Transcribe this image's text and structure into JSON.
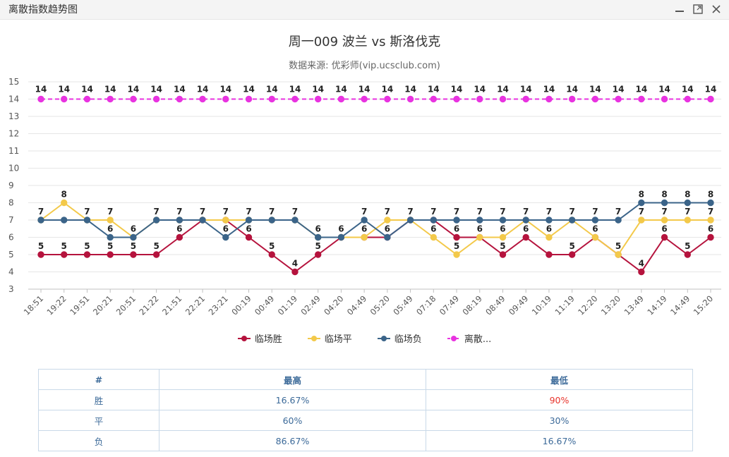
{
  "window": {
    "title": "离散指数趋势图"
  },
  "chart_data": {
    "type": "line",
    "title": "周一009 波兰 vs 斯洛伐克",
    "subtitle": "数据来源: 优彩师(vip.ucsclub.com)",
    "ylim": [
      3,
      15
    ],
    "yticks": [
      3,
      4,
      5,
      6,
      7,
      8,
      9,
      10,
      11,
      12,
      13,
      14,
      15
    ],
    "grid": true,
    "legend_position": "bottom-center",
    "categories": [
      "18:51",
      "19:22",
      "19:51",
      "20:21",
      "20:51",
      "21:22",
      "21:51",
      "22:21",
      "23:21",
      "00:19",
      "00:49",
      "01:19",
      "02:49",
      "04:20",
      "04:49",
      "05:20",
      "05:49",
      "07:18",
      "07:49",
      "08:19",
      "08:49",
      "09:49",
      "10:19",
      "11:19",
      "12:20",
      "13:20",
      "13:49",
      "14:19",
      "14:49",
      "15:20"
    ],
    "series": [
      {
        "name": "临场胜",
        "color": "#b5133d",
        "dashed": false,
        "labels": "below",
        "values": [
          5,
          5,
          5,
          5,
          5,
          5,
          6,
          7,
          7,
          6,
          5,
          4,
          5,
          6,
          6,
          6,
          7,
          7,
          6,
          6,
          5,
          6,
          5,
          5,
          6,
          5,
          4,
          6,
          5,
          6
        ]
      },
      {
        "name": "临场平",
        "color": "#f3c94a",
        "dashed": false,
        "labels": "above",
        "values": [
          7,
          8,
          7,
          7,
          6,
          7,
          7,
          7,
          7,
          7,
          7,
          7,
          6,
          6,
          6,
          7,
          7,
          6,
          5,
          6,
          6,
          7,
          6,
          7,
          6,
          5,
          7,
          7,
          7,
          7
        ]
      },
      {
        "name": "临场负",
        "color": "#3b6489",
        "dashed": false,
        "labels": "above",
        "values": [
          7,
          7,
          7,
          6,
          6,
          7,
          7,
          7,
          6,
          7,
          7,
          7,
          6,
          6,
          7,
          6,
          7,
          7,
          7,
          7,
          7,
          7,
          7,
          7,
          7,
          7,
          8,
          8,
          8,
          8
        ]
      },
      {
        "name": "离散指数",
        "legend_label": "离散...",
        "color": "#e833e0",
        "dashed": true,
        "labels": "above",
        "values": [
          14,
          14,
          14,
          14,
          14,
          14,
          14,
          14,
          14,
          14,
          14,
          14,
          14,
          14,
          14,
          14,
          14,
          14,
          14,
          14,
          14,
          14,
          14,
          14,
          14,
          14,
          14,
          14,
          14,
          14
        ]
      }
    ],
    "point_labels": [
      {
        "i": 0,
        "v": 5
      },
      {
        "i": 1,
        "v": 5
      },
      {
        "i": 2,
        "v": 5
      },
      {
        "i": 3,
        "v": 5
      },
      {
        "i": 4,
        "v": 5
      },
      {
        "i": 5,
        "v": 5
      },
      {
        "i": 6,
        "v": 6
      },
      {
        "i": 9,
        "v": 6
      },
      {
        "i": 10,
        "v": 5
      },
      {
        "i": 11,
        "v": 4
      },
      {
        "i": 12,
        "v": 5
      },
      {
        "i": 18,
        "v": 6
      },
      {
        "i": 19,
        "v": 6
      },
      {
        "i": 20,
        "v": 5
      },
      {
        "i": 21,
        "v": 6
      },
      {
        "i": 23,
        "v": 5
      },
      {
        "i": 24,
        "v": 6
      },
      {
        "i": 26,
        "v": 4
      },
      {
        "i": 27,
        "v": 6
      },
      {
        "i": 28,
        "v": 5
      },
      {
        "i": 29,
        "v": 6
      },
      {
        "i": 0,
        "v": 7
      },
      {
        "i": 1,
        "v": 8
      },
      {
        "i": 2,
        "v": 7
      },
      {
        "i": 3,
        "v": 7
      },
      {
        "i": 3,
        "v": 6
      },
      {
        "i": 4,
        "v": 6
      },
      {
        "i": 5,
        "v": 7
      },
      {
        "i": 6,
        "v": 7
      },
      {
        "i": 7,
        "v": 7
      },
      {
        "i": 8,
        "v": 7
      },
      {
        "i": 8,
        "v": 6
      },
      {
        "i": 9,
        "v": 7
      },
      {
        "i": 10,
        "v": 7
      },
      {
        "i": 11,
        "v": 7
      },
      {
        "i": 12,
        "v": 6
      },
      {
        "i": 13,
        "v": 6
      },
      {
        "i": 14,
        "v": 7
      },
      {
        "i": 14,
        "v": 6
      },
      {
        "i": 15,
        "v": 7
      },
      {
        "i": 15,
        "v": 6
      },
      {
        "i": 16,
        "v": 7
      },
      {
        "i": 17,
        "v": 7
      },
      {
        "i": 17,
        "v": 6
      },
      {
        "i": 18,
        "v": 7
      },
      {
        "i": 18,
        "v": 5
      },
      {
        "i": 19,
        "v": 7
      },
      {
        "i": 20,
        "v": 7
      },
      {
        "i": 20,
        "v": 6
      },
      {
        "i": 21,
        "v": 7
      },
      {
        "i": 22,
        "v": 7
      },
      {
        "i": 22,
        "v": 6
      },
      {
        "i": 23,
        "v": 7
      },
      {
        "i": 24,
        "v": 7
      },
      {
        "i": 25,
        "v": 7
      },
      {
        "i": 25,
        "v": 5
      },
      {
        "i": 26,
        "v": 8
      },
      {
        "i": 26,
        "v": 7
      },
      {
        "i": 27,
        "v": 8
      },
      {
        "i": 27,
        "v": 7
      },
      {
        "i": 28,
        "v": 8
      },
      {
        "i": 28,
        "v": 7
      },
      {
        "i": 29,
        "v": 8
      },
      {
        "i": 29,
        "v": 7
      }
    ]
  },
  "table": {
    "headers": [
      "#",
      "最高",
      "最低"
    ],
    "rows": [
      [
        "胜",
        "16.67%",
        "90%"
      ],
      [
        "平",
        "60%",
        "30%"
      ],
      [
        "负",
        "86.67%",
        "16.67%"
      ]
    ],
    "highlight_color": "#e8342c"
  }
}
